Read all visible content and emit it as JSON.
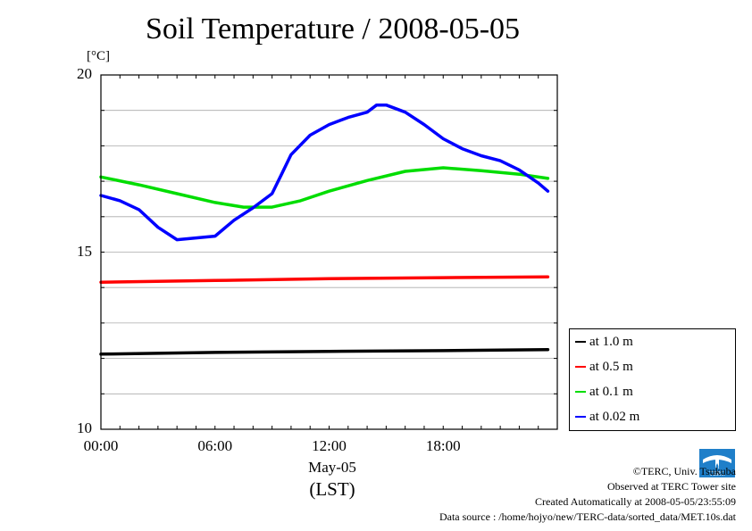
{
  "chart_data": {
    "type": "line",
    "title": "Soil Temperature / 2008-05-05",
    "unit_label": "[°C]",
    "ylim": [
      10,
      20
    ],
    "yticks": [
      {
        "value": 20,
        "label": "20"
      },
      {
        "value": 15,
        "label": "15"
      },
      {
        "value": 10,
        "label": "10"
      }
    ],
    "xlim": [
      0,
      24
    ],
    "xticks": [
      {
        "value": 0,
        "label": "00:00"
      },
      {
        "value": 6,
        "label": "06:00"
      },
      {
        "value": 12,
        "label": "12:00"
      },
      {
        "value": 18,
        "label": "18:00"
      }
    ],
    "date_label": "May-05",
    "xlabel": "(LST)",
    "grid": true,
    "legend_position": "right-bottom",
    "series": [
      {
        "name": "at 1.0 m",
        "color": "#000000",
        "x": [
          0,
          6,
          12,
          18,
          23.5
        ],
        "y": [
          12.12,
          12.17,
          12.2,
          12.22,
          12.25
        ]
      },
      {
        "name": "at 0.5 m",
        "color": "#ff0000",
        "x": [
          0,
          6,
          12,
          18,
          23.5
        ],
        "y": [
          14.15,
          14.2,
          14.25,
          14.28,
          14.3
        ]
      },
      {
        "name": "at 0.1 m",
        "color": "#00dd00",
        "x": [
          0,
          2,
          4,
          6,
          7.5,
          9,
          10.5,
          12,
          14,
          16,
          18,
          20,
          22,
          23.5
        ],
        "y": [
          17.12,
          16.9,
          16.65,
          16.4,
          16.27,
          16.27,
          16.45,
          16.72,
          17.02,
          17.28,
          17.38,
          17.3,
          17.2,
          17.08
        ]
      },
      {
        "name": "at 0.02 m",
        "color": "#0000ff",
        "x": [
          0,
          1,
          2,
          3,
          4,
          5,
          6,
          7,
          8,
          9,
          9.5,
          10,
          11,
          12,
          13,
          14,
          14.5,
          15,
          16,
          17,
          18,
          19,
          20,
          21,
          22,
          23,
          23.5
        ],
        "y": [
          16.6,
          16.45,
          16.2,
          15.7,
          15.35,
          15.4,
          15.45,
          15.9,
          16.25,
          16.65,
          17.2,
          17.75,
          18.3,
          18.6,
          18.8,
          18.95,
          19.15,
          19.15,
          18.95,
          18.6,
          18.2,
          17.92,
          17.72,
          17.58,
          17.32,
          16.95,
          16.72
        ]
      }
    ]
  },
  "footer": {
    "copyright": "©TERC, Univ. Tsukuba",
    "site": "Observed at TERC Tower site",
    "created": "Created Automatically at 2008-05-05/23:55:09",
    "source": "Data source : /home/hojyo/new/TERC-data/sorted_data/MET.10s.dat",
    "logo_text": "TERC"
  }
}
